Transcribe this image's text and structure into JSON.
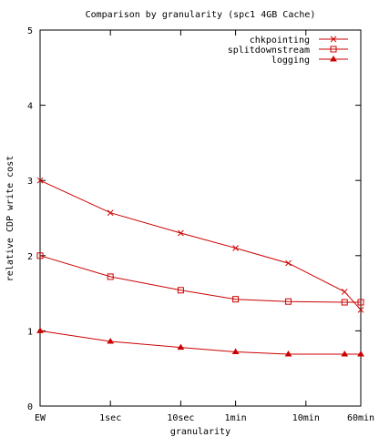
{
  "chart_data": {
    "type": "line",
    "title": "Comparison by granularity (spc1 4GB Cache)",
    "xlabel": "granularity",
    "ylabel": "relative CDP write cost",
    "x_tick_labels": [
      "EW",
      "1sec",
      "10sec",
      "1min",
      "10min",
      "60min"
    ],
    "x_tick_positions": [
      0,
      1,
      2,
      2.78,
      3.78,
      4.56
    ],
    "y_ticks": [
      "0",
      "1",
      "2",
      "3",
      "4",
      "5"
    ],
    "ylim": [
      0,
      5
    ],
    "xlim": [
      0,
      4.56
    ],
    "legend_position": "top-right",
    "grid": false,
    "colors": {
      "series": "#cc0000",
      "axes": "#000000"
    },
    "series": [
      {
        "name": "chkpointing",
        "marker": "x",
        "x": [
          0,
          1,
          2,
          2.78,
          3.53,
          4.33,
          4.56
        ],
        "y": [
          3.0,
          2.57,
          2.3,
          2.1,
          1.9,
          1.52,
          1.28
        ]
      },
      {
        "name": "splitdownstream",
        "marker": "square",
        "x": [
          0,
          1,
          2,
          2.78,
          3.53,
          4.33,
          4.56
        ],
        "y": [
          2.0,
          1.72,
          1.54,
          1.42,
          1.39,
          1.38,
          1.38
        ]
      },
      {
        "name": "logging",
        "marker": "triangle",
        "x": [
          0,
          1,
          2,
          2.78,
          3.53,
          4.33,
          4.56
        ],
        "y": [
          1.0,
          0.86,
          0.78,
          0.72,
          0.69,
          0.69,
          0.69
        ]
      }
    ]
  }
}
